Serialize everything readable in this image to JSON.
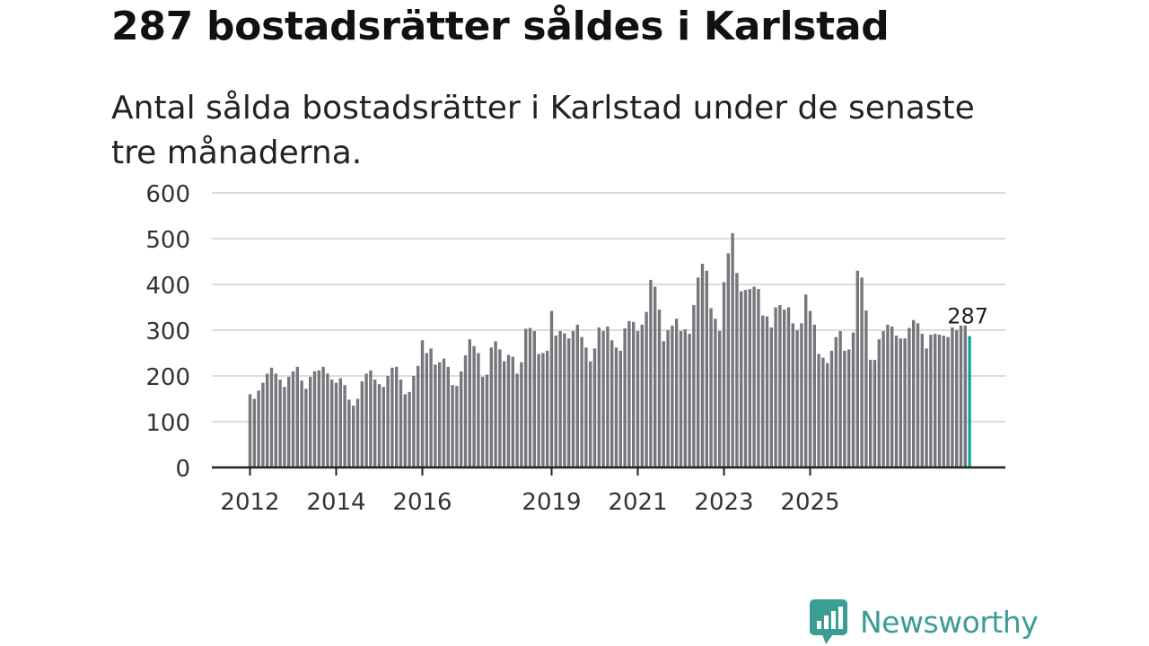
{
  "title": "287 bostadsrätter såldes i Karlstad",
  "subtitle": "Antal sålda bostadsrätter i Karlstad under de senaste tre månaderna.",
  "brand": {
    "name": "Newsworthy",
    "color": "#3b9d94"
  },
  "colors": {
    "bar": "#76767d",
    "highlight": "#13a69a",
    "grid": "#dcdcdc",
    "axis": "#222222"
  },
  "chart_data": {
    "type": "bar",
    "title": "287 bostadsrätter såldes i Karlstad",
    "subtitle": "Antal sålda bostadsrätter i Karlstad under de senaste tre månaderna.",
    "xlabel": "",
    "ylabel": "",
    "ylim": [
      0,
      600
    ],
    "yticks": [
      0,
      100,
      200,
      300,
      400,
      500,
      600
    ],
    "grid": true,
    "x_start_year": 2012,
    "x_tick_labels": [
      {
        "label": "2012",
        "index": 0
      },
      {
        "label": "2014",
        "index": 20
      },
      {
        "label": "2016",
        "index": 40
      },
      {
        "label": "2019",
        "index": 70
      },
      {
        "label": "2021",
        "index": 90
      },
      {
        "label": "2023",
        "index": 110
      },
      {
        "label": "2025",
        "index": 130
      }
    ],
    "highlight_label": "287",
    "values": [
      160,
      150,
      168,
      185,
      205,
      218,
      205,
      192,
      176,
      198,
      210,
      220,
      190,
      172,
      198,
      210,
      212,
      220,
      205,
      192,
      185,
      195,
      180,
      148,
      135,
      150,
      188,
      205,
      212,
      192,
      182,
      176,
      200,
      218,
      220,
      192,
      160,
      165,
      200,
      222,
      278,
      250,
      260,
      225,
      230,
      238,
      220,
      180,
      178,
      210,
      245,
      280,
      265,
      250,
      198,
      203,
      262,
      276,
      258,
      232,
      246,
      242,
      205,
      230,
      303,
      305,
      298,
      248,
      250,
      255,
      342,
      288,
      298,
      293,
      282,
      298,
      312,
      285,
      262,
      232,
      260,
      306,
      298,
      308,
      278,
      262,
      255,
      304,
      320,
      318,
      298,
      312,
      340,
      410,
      395,
      345,
      276,
      300,
      310,
      325,
      298,
      302,
      292,
      355,
      415,
      445,
      430,
      348,
      325,
      298,
      405,
      468,
      512,
      425,
      385,
      388,
      390,
      395,
      390,
      332,
      330,
      306,
      350,
      355,
      345,
      350,
      315,
      300,
      315,
      378,
      342,
      312,
      248,
      240,
      228,
      255,
      285,
      298,
      255,
      258,
      295,
      430,
      415,
      343,
      235,
      235,
      280,
      298,
      312,
      308,
      288,
      282,
      282,
      305,
      322,
      315,
      292,
      260,
      290,
      292,
      290,
      288,
      285,
      306,
      300,
      310,
      310,
      287
    ]
  }
}
